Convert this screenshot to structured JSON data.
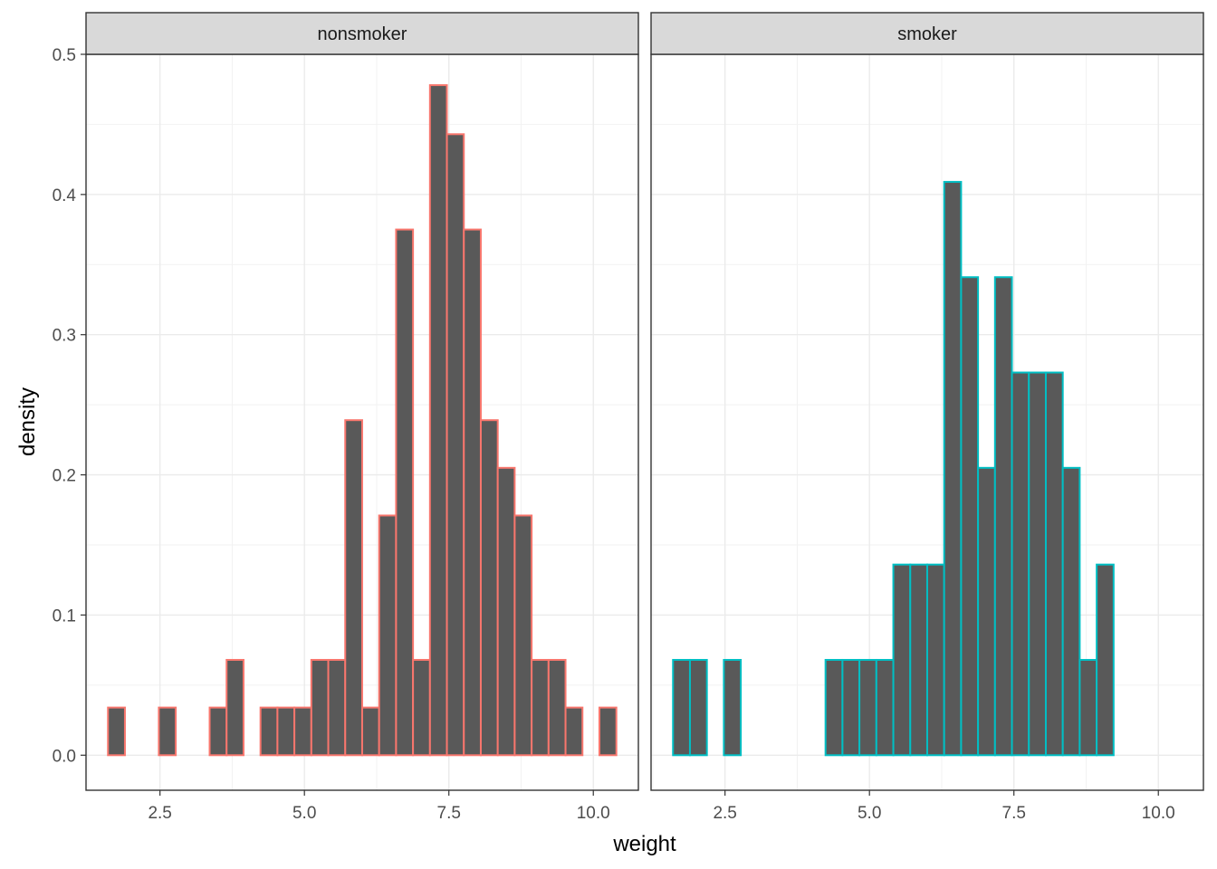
{
  "chart_data": {
    "type": "histogram",
    "xlabel": "weight",
    "ylabel": "density",
    "xlim": [
      1.22,
      10.78
    ],
    "ylim": [
      -0.025,
      0.5
    ],
    "x_ticks": [
      2.5,
      5.0,
      7.5,
      10.0
    ],
    "x_tick_labels": [
      "2.5",
      "5.0",
      "7.5",
      "10.0"
    ],
    "y_ticks": [
      0.0,
      0.1,
      0.2,
      0.3,
      0.4,
      0.5
    ],
    "y_tick_labels": [
      "0.0",
      "0.1",
      "0.2",
      "0.3",
      "0.4",
      "0.5"
    ],
    "bin_start": 1.6,
    "bin_width": 0.2933,
    "grid": true,
    "legend": "none",
    "bar_fill": "#595959",
    "panels": [
      {
        "name": "nonsmoker",
        "outline": "#F8766D",
        "densities": [
          0.034,
          0,
          0,
          0.034,
          0,
          0,
          0.034,
          0.068,
          0,
          0.034,
          0.034,
          0.034,
          0.068,
          0.068,
          0.239,
          0.034,
          0.171,
          0.375,
          0.068,
          0.478,
          0.443,
          0.375,
          0.239,
          0.205,
          0.171,
          0.068,
          0.068,
          0.034,
          0,
          0.034
        ]
      },
      {
        "name": "smoker",
        "outline": "#00BFC4",
        "densities": [
          0.068,
          0.068,
          0,
          0.068,
          0,
          0,
          0,
          0,
          0,
          0.068,
          0.068,
          0.068,
          0.068,
          0.136,
          0.136,
          0.136,
          0.409,
          0.341,
          0.205,
          0.341,
          0.273,
          0.273,
          0.273,
          0.205,
          0.068,
          0.136,
          0,
          0,
          0,
          0
        ]
      }
    ]
  }
}
